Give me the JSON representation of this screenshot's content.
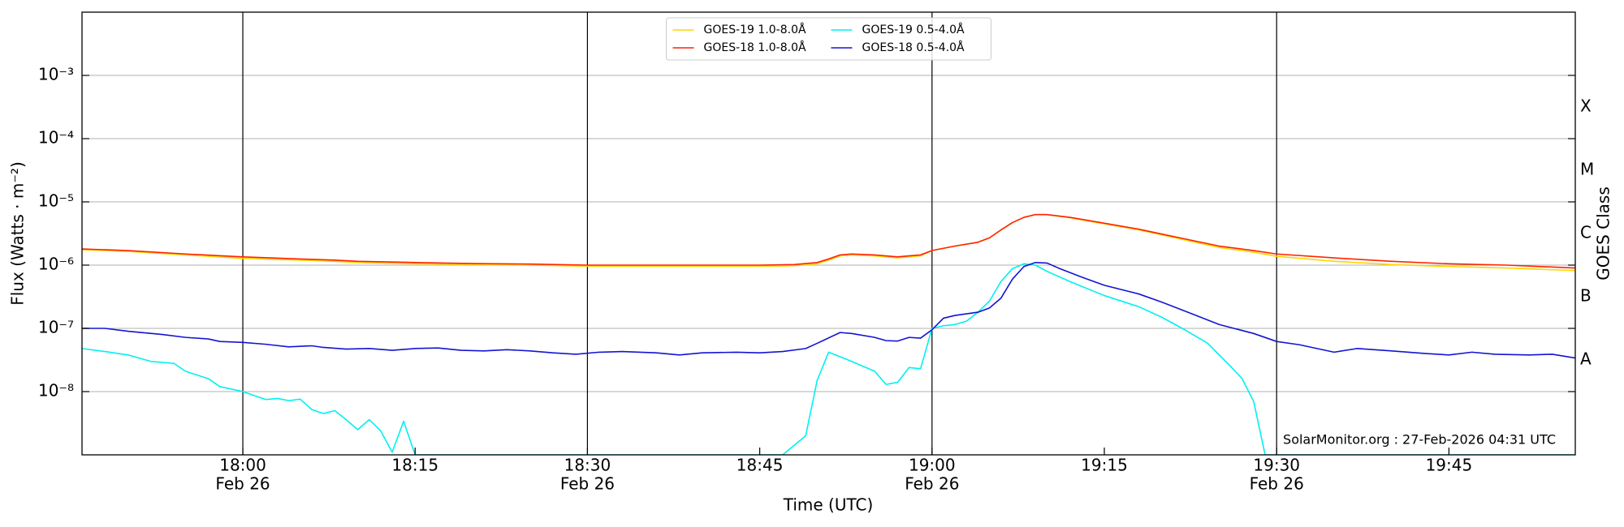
{
  "chart_data": {
    "type": "line",
    "xlabel": "Time (UTC)",
    "ylabel": "Flux (Watts · m⁻²)",
    "y2label": "GOES Class",
    "annotation": "SolarMonitor.org : 27-Feb-2026 04:31 UTC",
    "ylog": true,
    "grid": true,
    "legend_loc": "upper center",
    "legend_ncol": 2,
    "xlim": [
      "17:46",
      "19:56"
    ],
    "xticks": [
      {
        "value": "18:00",
        "label": [
          "18:00",
          "Feb 26"
        ]
      },
      "18:15",
      {
        "value": "18:30",
        "label": [
          "18:30",
          "Feb 26"
        ]
      },
      "18:45",
      {
        "value": "19:00",
        "label": [
          "19:00",
          "Feb 26"
        ]
      },
      "19:15",
      {
        "value": "19:30",
        "label": [
          "19:30",
          "Feb 26"
        ]
      },
      "19:45"
    ],
    "ylim": [
      1e-09,
      0.01
    ],
    "yticks": [
      {
        "value": 1e-08,
        "label": "10⁻⁸"
      },
      {
        "value": 1e-07,
        "label": "10⁻⁷"
      },
      {
        "value": 1e-06,
        "label": "10⁻⁶"
      },
      {
        "value": 1e-05,
        "label": "10⁻⁵"
      },
      {
        "value": 0.0001,
        "label": "10⁻⁴"
      },
      {
        "value": 0.001,
        "label": "10⁻³"
      }
    ],
    "y2lim": [
      1e-09,
      0.01
    ],
    "y2ticks": [
      {
        "value": 3.16e-08,
        "label": "A"
      },
      {
        "value": 3.16e-07,
        "label": "B"
      },
      {
        "value": 3.16e-06,
        "label": "C"
      },
      {
        "value": 3.16e-05,
        "label": "M"
      },
      {
        "value": 0.000316,
        "label": "X"
      }
    ],
    "series": [
      {
        "name": "GOES-19 1.0-8.0Å",
        "color": "#ffd700",
        "x": [
          "17:46",
          "17:50",
          "17:55",
          "18:00",
          "18:05",
          "18:08",
          "18:10",
          "18:15",
          "18:20",
          "18:25",
          "18:30",
          "18:35",
          "18:40",
          "18:45",
          "18:48",
          "18:50",
          "18:51",
          "18:52",
          "18:53",
          "18:55",
          "18:57",
          "18:58",
          "18:59",
          "19:00",
          "19:02",
          "19:04",
          "19:05",
          "19:06",
          "19:07",
          "19:08",
          "19:09",
          "19:10",
          "19:12",
          "19:15",
          "19:18",
          "19:20",
          "19:22",
          "19:25",
          "19:28",
          "19:30",
          "19:35",
          "19:40",
          "19:45",
          "19:50",
          "19:56"
        ],
        "values": [
          1.75e-06,
          1.65e-06,
          1.45e-06,
          1.28e-06,
          1.2e-06,
          1.15e-06,
          1.1e-06,
          1.05e-06,
          1.02e-06,
          1e-06,
          9.6e-07,
          9.6e-07,
          9.6e-07,
          9.6e-07,
          9.8e-07,
          1.05e-06,
          1.2e-06,
          1.4e-06,
          1.45e-06,
          1.4e-06,
          1.3e-06,
          1.35e-06,
          1.4e-06,
          1.7e-06,
          2e-06,
          2.3e-06,
          2.7e-06,
          3.6e-06,
          4.7e-06,
          5.7e-06,
          6.3e-06,
          6.3e-06,
          5.6e-06,
          4.5e-06,
          3.6e-06,
          3e-06,
          2.5e-06,
          1.9e-06,
          1.6e-06,
          1.38e-06,
          1.15e-06,
          1.02e-06,
          9.5e-07,
          9e-07,
          8.2e-07
        ]
      },
      {
        "name": "GOES-18 1.0-8.0Å",
        "color": "#ff2200",
        "x": [
          "17:46",
          "17:50",
          "17:55",
          "18:00",
          "18:05",
          "18:08",
          "18:10",
          "18:15",
          "18:20",
          "18:25",
          "18:30",
          "18:35",
          "18:40",
          "18:45",
          "18:48",
          "18:50",
          "18:51",
          "18:52",
          "18:53",
          "18:55",
          "18:57",
          "18:58",
          "18:59",
          "19:00",
          "19:02",
          "19:04",
          "19:05",
          "19:06",
          "19:07",
          "19:08",
          "19:09",
          "19:10",
          "19:12",
          "19:15",
          "19:18",
          "19:20",
          "19:22",
          "19:25",
          "19:28",
          "19:30",
          "19:35",
          "19:40",
          "19:45",
          "19:50",
          "19:56"
        ],
        "values": [
          1.8e-06,
          1.7e-06,
          1.5e-06,
          1.35e-06,
          1.25e-06,
          1.2e-06,
          1.15e-06,
          1.1e-06,
          1.06e-06,
          1.04e-06,
          1e-06,
          1e-06,
          1e-06,
          1e-06,
          1.02e-06,
          1.1e-06,
          1.25e-06,
          1.45e-06,
          1.5e-06,
          1.45e-06,
          1.35e-06,
          1.4e-06,
          1.45e-06,
          1.7e-06,
          2e-06,
          2.3e-06,
          2.7e-06,
          3.6e-06,
          4.7e-06,
          5.7e-06,
          6.3e-06,
          6.3e-06,
          5.7e-06,
          4.6e-06,
          3.7e-06,
          3.1e-06,
          2.6e-06,
          2e-06,
          1.7e-06,
          1.5e-06,
          1.3e-06,
          1.15e-06,
          1.05e-06,
          1e-06,
          9e-07
        ]
      },
      {
        "name": "GOES-19 0.5-4.0Å",
        "color": "#00f0f0",
        "x": [
          "17:46",
          "17:48",
          "17:50",
          "17:52",
          "17:54",
          "17:55",
          "17:57",
          "17:58",
          "18:00",
          "18:02",
          "18:03",
          "18:04",
          "18:05",
          "18:06",
          "18:07",
          "18:08",
          "18:09",
          "18:10",
          "18:11",
          "18:12",
          "18:13",
          "18:14",
          "18:15",
          "18:47",
          "18:49",
          "18:50",
          "18:51",
          "18:53",
          "18:55",
          "18:56",
          "18:57",
          "18:58",
          "18:59",
          "19:00",
          "19:01",
          "19:02",
          "19:03",
          "19:04",
          "19:05",
          "19:06",
          "19:07",
          "19:08",
          "19:09",
          "19:10",
          "19:12",
          "19:15",
          "19:18",
          "19:20",
          "19:22",
          "19:24",
          "19:26",
          "19:27",
          "19:28",
          "19:29",
          "19:56"
        ],
        "values": [
          4.8e-08,
          4.3e-08,
          3.8e-08,
          3e-08,
          2.8e-08,
          2.1e-08,
          1.6e-08,
          1.2e-08,
          1e-08,
          7.5e-09,
          7.8e-09,
          7.2e-09,
          7.6e-09,
          5.2e-09,
          4.5e-09,
          5e-09,
          3.6e-09,
          2.5e-09,
          3.6e-09,
          2.4e-09,
          1.1e-09,
          3.4e-09,
          1e-09,
          1e-09,
          2e-09,
          1.5e-08,
          4.2e-08,
          3e-08,
          2.1e-08,
          1.3e-08,
          1.4e-08,
          2.4e-08,
          2.3e-08,
          1e-07,
          1.1e-07,
          1.15e-07,
          1.3e-07,
          1.8e-07,
          2.7e-07,
          5.5e-07,
          8.8e-07,
          1.05e-06,
          1e-06,
          8e-07,
          5.5e-07,
          3.3e-07,
          2.2e-07,
          1.5e-07,
          9.5e-08,
          5.8e-08,
          2.5e-08,
          1.6e-08,
          7e-09,
          1e-09,
          1e-09
        ]
      },
      {
        "name": "GOES-18 0.5-4.0Å",
        "color": "#1414d2",
        "x": [
          "17:46",
          "17:48",
          "17:50",
          "17:53",
          "17:55",
          "17:57",
          "17:58",
          "18:00",
          "18:02",
          "18:04",
          "18:06",
          "18:07",
          "18:09",
          "18:11",
          "18:13",
          "18:15",
          "18:17",
          "18:19",
          "18:21",
          "18:23",
          "18:25",
          "18:27",
          "18:29",
          "18:31",
          "18:33",
          "18:36",
          "18:38",
          "18:40",
          "18:43",
          "18:45",
          "18:47",
          "18:49",
          "18:50",
          "18:52",
          "18:53",
          "18:55",
          "18:56",
          "18:57",
          "18:58",
          "18:59",
          "19:00",
          "19:01",
          "19:02",
          "19:04",
          "19:05",
          "19:06",
          "19:07",
          "19:08",
          "19:09",
          "19:10",
          "19:11",
          "19:13",
          "19:15",
          "19:18",
          "19:20",
          "19:23",
          "19:25",
          "19:28",
          "19:30",
          "19:32",
          "19:35",
          "19:37",
          "19:40",
          "19:43",
          "19:45",
          "19:47",
          "19:49",
          "19:52",
          "19:54",
          "19:56"
        ],
        "values": [
          1e-07,
          1e-07,
          9e-08,
          8e-08,
          7.2e-08,
          6.8e-08,
          6.2e-08,
          6e-08,
          5.6e-08,
          5.1e-08,
          5.3e-08,
          5e-08,
          4.7e-08,
          4.8e-08,
          4.5e-08,
          4.8e-08,
          4.9e-08,
          4.5e-08,
          4.4e-08,
          4.6e-08,
          4.4e-08,
          4.1e-08,
          3.9e-08,
          4.2e-08,
          4.3e-08,
          4.1e-08,
          3.8e-08,
          4.1e-08,
          4.2e-08,
          4.1e-08,
          4.3e-08,
          4.8e-08,
          5.8e-08,
          8.6e-08,
          8.3e-08,
          7.2e-08,
          6.4e-08,
          6.3e-08,
          7.2e-08,
          7e-08,
          9.5e-08,
          1.45e-07,
          1.6e-07,
          1.8e-07,
          2.1e-07,
          3e-07,
          6e-07,
          9.5e-07,
          1.1e-06,
          1.08e-06,
          9e-07,
          6.5e-07,
          4.8e-07,
          3.5e-07,
          2.6e-07,
          1.6e-07,
          1.15e-07,
          8.3e-08,
          6.2e-08,
          5.5e-08,
          4.2e-08,
          4.8e-08,
          4.4e-08,
          4e-08,
          3.8e-08,
          4.2e-08,
          3.9e-08,
          3.8e-08,
          3.9e-08,
          3.4e-08
        ]
      }
    ]
  }
}
